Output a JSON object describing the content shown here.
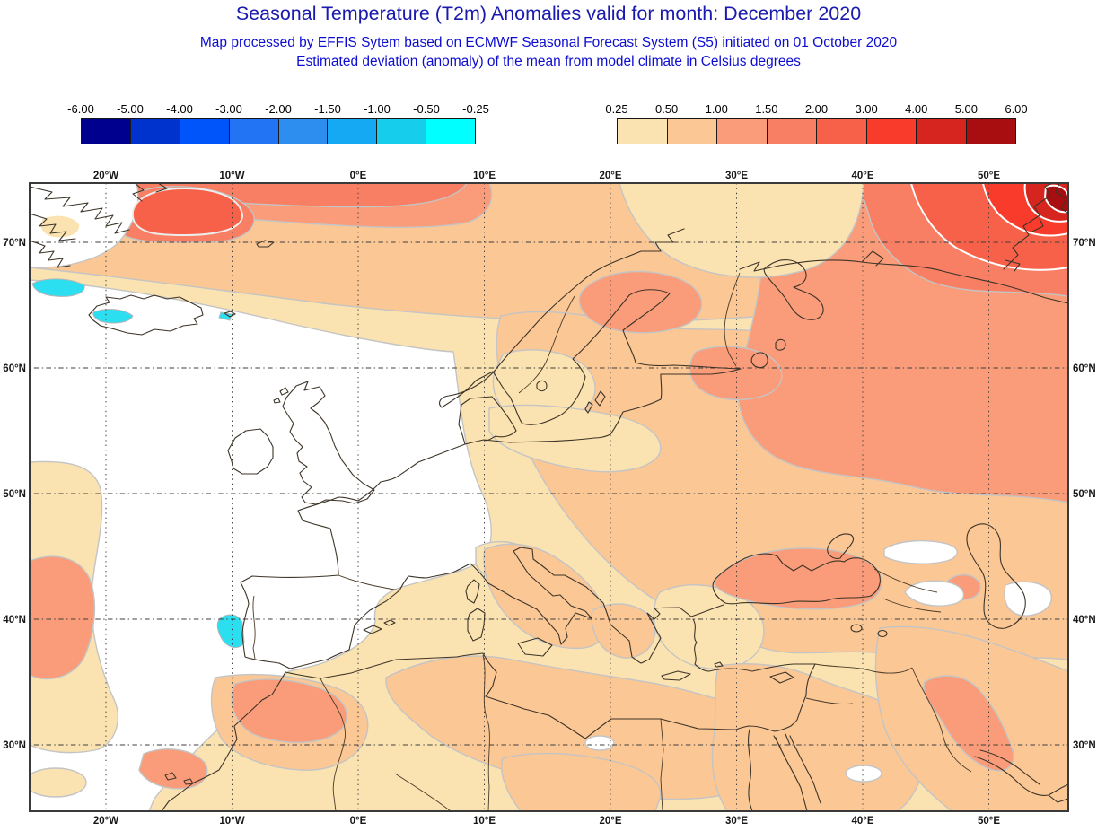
{
  "header": {
    "title": "Seasonal Temperature (T2m) Anomalies valid for month: December 2020",
    "subtitle1": "Map processed by EFFIS Sytem based on ECMWF Seasonal Forecast System (S5) initiated on 01 October 2020",
    "subtitle2": "Estimated deviation (anomaly) of the mean from model climate in Celsius degrees"
  },
  "colors": {
    "title": "#1a1aae",
    "subtitle": "#0d0dd2",
    "axis_label": "#161616",
    "map_frame": "#3a3a3a",
    "coastline": "#3d3428",
    "contour_gray": "#c4c4c4",
    "contour_white": "#ffffff",
    "neutral_white": "#ffffff",
    "cyan_patch": "#2bdff0"
  },
  "legend": {
    "negative": {
      "ticks": [
        "-6.00",
        "-5.00",
        "-4.00",
        "-3.00",
        "-2.00",
        "-1.50",
        "-1.00",
        "-0.50",
        "-0.25"
      ],
      "cell_colors": [
        "#00008f",
        "#0032cd",
        "#0055fa",
        "#2373f5",
        "#2e8ef0",
        "#16a9f3",
        "#16cdec",
        "#00ffff"
      ]
    },
    "positive": {
      "ticks": [
        "0.25",
        "0.50",
        "1.00",
        "1.50",
        "2.00",
        "3.00",
        "4.00",
        "5.00",
        "6.00"
      ],
      "cell_colors": [
        "#fbe3b1",
        "#fbc795",
        "#fa9c79",
        "#f87f63",
        "#f7614a",
        "#f93b2b",
        "#d6251f",
        "#a80d10"
      ]
    }
  },
  "map": {
    "lon_labels": [
      "20°W",
      "10°W",
      "0°E",
      "10°E",
      "20°E",
      "30°E",
      "40°E",
      "50°E"
    ],
    "lat_labels": [
      "70°N",
      "60°N",
      "50°N",
      "40°N",
      "30°N"
    ]
  }
}
